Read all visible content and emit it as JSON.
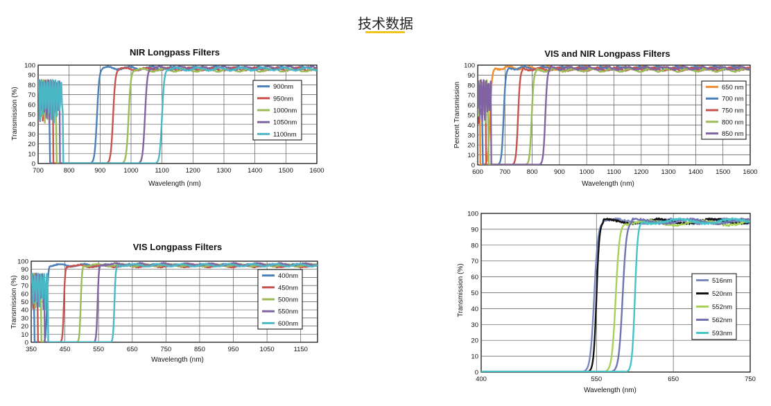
{
  "page": {
    "title": "技术数据"
  },
  "chart_data": [
    {
      "type": "line",
      "title": "NIR Longpass Filters",
      "xlabel": "Wavelength (nm)",
      "ylabel": "Transmission (%)",
      "xlim": [
        700,
        1600
      ],
      "ylim": [
        0,
        100
      ],
      "xticks": [
        700,
        800,
        900,
        1000,
        1100,
        1200,
        1300,
        1400,
        1500,
        1600
      ],
      "yticks": [
        0,
        10,
        20,
        30,
        40,
        50,
        60,
        70,
        80,
        90,
        100
      ],
      "grid": true,
      "legend_position": "right",
      "series": [
        {
          "name": "900nm",
          "color": "#4b7fb8",
          "cut_on": 890,
          "edge_width": 12,
          "plateau": 97
        },
        {
          "name": "950nm",
          "color": "#c9514d",
          "cut_on": 942,
          "edge_width": 12,
          "plateau": 96
        },
        {
          "name": "1000nm",
          "color": "#9bbb59",
          "cut_on": 992,
          "edge_width": 12,
          "plateau": 95
        },
        {
          "name": "1050nm",
          "color": "#8064a2",
          "cut_on": 1045,
          "edge_width": 12,
          "plateau": 97
        },
        {
          "name": "1100nm",
          "color": "#4bb8c6",
          "cut_on": 1100,
          "edge_width": 12,
          "plateau": 96
        }
      ]
    },
    {
      "type": "line",
      "title": "VIS and NIR Longpass Filters",
      "xlabel": "Wavelength (nm)",
      "ylabel": "Percent Transmission",
      "xlim": [
        600,
        1600
      ],
      "ylim": [
        0,
        100
      ],
      "xticks": [
        600,
        700,
        800,
        900,
        1000,
        1100,
        1200,
        1300,
        1400,
        1500,
        1600
      ],
      "yticks": [
        0,
        10,
        20,
        30,
        40,
        50,
        60,
        70,
        80,
        90,
        100
      ],
      "grid": true,
      "legend_position": "right",
      "series": [
        {
          "name": "650 nm",
          "color": "#f08a2c",
          "cut_on": 645,
          "edge_width": 12,
          "plateau": 97
        },
        {
          "name": "700 nm",
          "color": "#4b7fb8",
          "cut_on": 695,
          "edge_width": 12,
          "plateau": 97
        },
        {
          "name": "750 nm",
          "color": "#c9514d",
          "cut_on": 748,
          "edge_width": 12,
          "plateau": 96
        },
        {
          "name": "800 nm",
          "color": "#9bbb59",
          "cut_on": 798,
          "edge_width": 12,
          "plateau": 95
        },
        {
          "name": "850 nm",
          "color": "#8064a2",
          "cut_on": 848,
          "edge_width": 12,
          "plateau": 97
        }
      ]
    },
    {
      "type": "line",
      "title": "VIS Longpass Filters",
      "xlabel": "Wavelength (nm)",
      "ylabel": "Transmission (%)",
      "xlim": [
        350,
        1200
      ],
      "ylim": [
        0,
        100
      ],
      "xticks": [
        350,
        450,
        550,
        650,
        750,
        850,
        950,
        1050,
        1150
      ],
      "yticks": [
        0,
        10,
        20,
        30,
        40,
        50,
        60,
        70,
        80,
        90,
        100
      ],
      "grid": true,
      "legend_position": "right",
      "series": [
        {
          "name": "400nm",
          "color": "#4b7fb8",
          "cut_on": 397,
          "edge_width": 6,
          "plateau": 95
        },
        {
          "name": "450nm",
          "color": "#c9514d",
          "cut_on": 447,
          "edge_width": 6,
          "plateau": 94
        },
        {
          "name": "500nm",
          "color": "#9bbb59",
          "cut_on": 497,
          "edge_width": 6,
          "plateau": 95
        },
        {
          "name": "550nm",
          "color": "#8064a2",
          "cut_on": 547,
          "edge_width": 6,
          "plateau": 96
        },
        {
          "name": "600nm",
          "color": "#4bb8c6",
          "cut_on": 597,
          "edge_width": 6,
          "plateau": 95
        }
      ]
    },
    {
      "type": "line",
      "title": "",
      "xlabel": "Wavelength (nm)",
      "ylabel": "Transmission (%)",
      "xlim": [
        400,
        750
      ],
      "ylim": [
        0,
        100
      ],
      "xticks": [
        400,
        550,
        650,
        750
      ],
      "yticks": [
        0,
        10,
        20,
        30,
        40,
        50,
        60,
        70,
        80,
        90,
        100
      ],
      "grid": true,
      "legend_position": "right",
      "series": [
        {
          "name": "516nm",
          "color": "#7b87c0",
          "cut_on": 547,
          "edge_width": 8,
          "plateau": 95
        },
        {
          "name": "520nm",
          "color": "#111111",
          "cut_on": 550,
          "edge_width": 6,
          "plateau": 95
        },
        {
          "name": "552nm",
          "color": "#a8cf5a",
          "cut_on": 575,
          "edge_width": 8,
          "plateau": 94
        },
        {
          "name": "562nm",
          "color": "#6f73b3",
          "cut_on": 584,
          "edge_width": 8,
          "plateau": 95
        },
        {
          "name": "593nm",
          "color": "#45c4c8",
          "cut_on": 600,
          "edge_width": 6,
          "plateau": 95
        }
      ]
    }
  ]
}
